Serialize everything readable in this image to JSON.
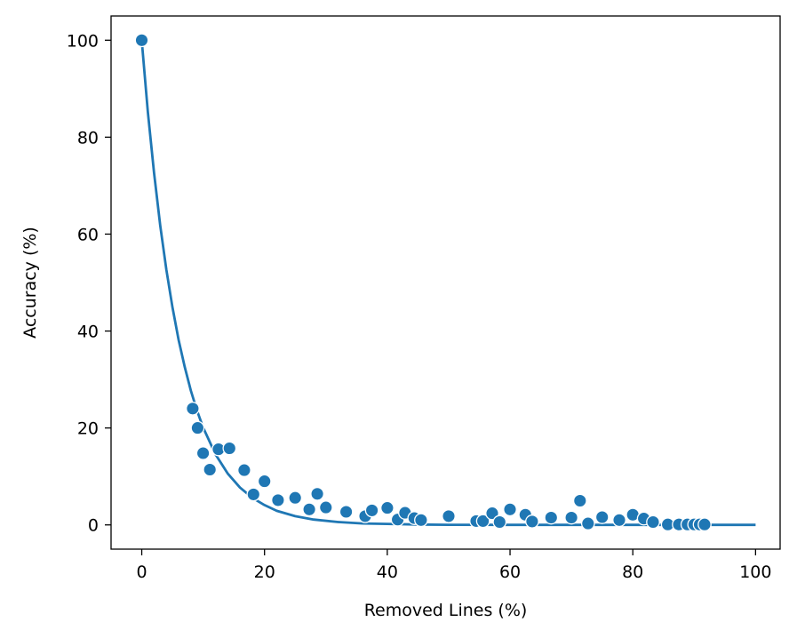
{
  "chart_data": {
    "type": "scatter",
    "xlabel": "Removed Lines (%)",
    "ylabel": "Accuracy (%)",
    "xlim": [
      -5,
      104
    ],
    "ylim": [
      -5,
      105
    ],
    "xticks": [
      0,
      20,
      40,
      60,
      80,
      100
    ],
    "yticks": [
      0,
      20,
      40,
      60,
      80,
      100
    ],
    "grid": false,
    "legend": "none",
    "colors": {
      "series": "#1f77b4",
      "marker_edge": "#ffffff",
      "axes": "#000000",
      "background": "#ffffff"
    },
    "series": [
      {
        "kind": "scatter",
        "points": [
          [
            0,
            100
          ],
          [
            8.3,
            24
          ],
          [
            9.1,
            20
          ],
          [
            10,
            14.8
          ],
          [
            11.1,
            11.4
          ],
          [
            12.5,
            15.6
          ],
          [
            14.3,
            15.8
          ],
          [
            16.7,
            11.3
          ],
          [
            18.2,
            6.3
          ],
          [
            20,
            9
          ],
          [
            22.2,
            5.1
          ],
          [
            25,
            5.6
          ],
          [
            27.3,
            3.2
          ],
          [
            28.6,
            6.4
          ],
          [
            30,
            3.6
          ],
          [
            33.3,
            2.7
          ],
          [
            36.4,
            1.8
          ],
          [
            37.5,
            3
          ],
          [
            40,
            3.5
          ],
          [
            41.7,
            1.1
          ],
          [
            42.9,
            2.5
          ],
          [
            44.4,
            1.4
          ],
          [
            45.5,
            1
          ],
          [
            50,
            1.8
          ],
          [
            54.5,
            0.8
          ],
          [
            55.6,
            0.8
          ],
          [
            57.1,
            2.4
          ],
          [
            58.3,
            0.6
          ],
          [
            60,
            3.2
          ],
          [
            62.5,
            2.1
          ],
          [
            63.6,
            0.7
          ],
          [
            66.7,
            1.5
          ],
          [
            70,
            1.5
          ],
          [
            71.4,
            5
          ],
          [
            72.7,
            0.3
          ],
          [
            75,
            1.6
          ],
          [
            77.8,
            1
          ],
          [
            80,
            2.1
          ],
          [
            81.8,
            1.3
          ],
          [
            83.3,
            0.6
          ],
          [
            85.7,
            0.1
          ],
          [
            87.5,
            0.1
          ],
          [
            88.9,
            0.1
          ],
          [
            90,
            0.1
          ],
          [
            90.9,
            0.1
          ],
          [
            91.7,
            0.1
          ]
        ]
      },
      {
        "kind": "line",
        "fit": "exponential decay",
        "x": [
          0,
          1,
          2,
          3,
          4,
          5,
          6,
          7,
          8,
          9,
          10,
          12,
          14,
          16,
          18,
          20,
          22,
          25,
          28,
          32,
          36,
          40,
          45,
          50,
          60,
          70,
          80,
          90,
          100
        ],
        "y": [
          100,
          85.2,
          72.6,
          61.8,
          52.7,
          44.9,
          38.2,
          32.6,
          27.7,
          23.6,
          20.1,
          14.6,
          10.6,
          7.7,
          5.6,
          4.1,
          2.9,
          1.8,
          1.1,
          0.6,
          0.3,
          0.2,
          0.07,
          0.03,
          0,
          0,
          0,
          0,
          0
        ]
      }
    ]
  }
}
